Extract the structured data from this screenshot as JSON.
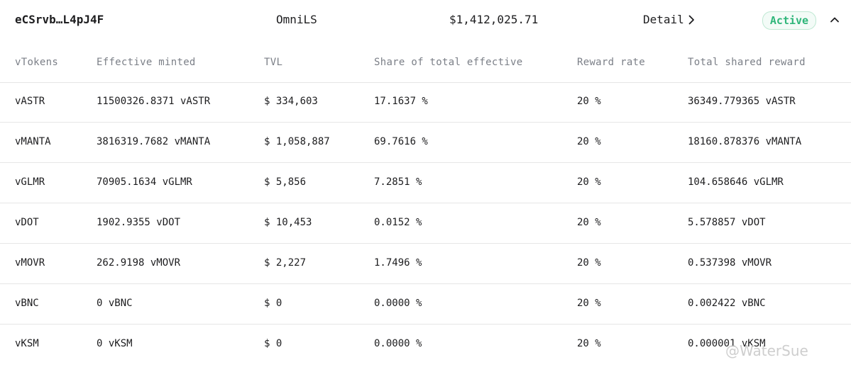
{
  "summary": {
    "address": "eCSrvb…L4pJ4F",
    "project": "OmniLS",
    "total_value": "$1,412,025.71",
    "detail_label": "Detail",
    "status": "Active",
    "status_color": "#2fb67a"
  },
  "columns": [
    "vTokens",
    "Effective minted",
    "TVL",
    "Share of total effective",
    "Reward rate",
    "Total shared reward"
  ],
  "rows": [
    {
      "token": "vASTR",
      "minted": "11500326.8371 vASTR",
      "tvl": "$ 334,603",
      "share": "17.1637 %",
      "rate": "20 %",
      "reward": "36349.779365 vASTR"
    },
    {
      "token": "vMANTA",
      "minted": "3816319.7682 vMANTA",
      "tvl": "$ 1,058,887",
      "share": "69.7616 %",
      "rate": "20 %",
      "reward": "18160.878376 vMANTA"
    },
    {
      "token": "vGLMR",
      "minted": "70905.1634 vGLMR",
      "tvl": "$ 5,856",
      "share": "7.2851 %",
      "rate": "20 %",
      "reward": "104.658646 vGLMR"
    },
    {
      "token": "vDOT",
      "minted": "1902.9355 vDOT",
      "tvl": "$ 10,453",
      "share": "0.0152 %",
      "rate": "20 %",
      "reward": "5.578857 vDOT"
    },
    {
      "token": "vMOVR",
      "minted": "262.9198 vMOVR",
      "tvl": "$ 2,227",
      "share": "1.7496 %",
      "rate": "20 %",
      "reward": "0.537398 vMOVR"
    },
    {
      "token": "vBNC",
      "minted": "0 vBNC",
      "tvl": "$ 0",
      "share": "0.0000 %",
      "rate": "20 %",
      "reward": "0.002422 vBNC"
    },
    {
      "token": "vKSM",
      "minted": "0 vKSM",
      "tvl": "$ 0",
      "share": "0.0000 %",
      "rate": "20 %",
      "reward": "0.000001 vKSM"
    }
  ],
  "watermark": "@WaterSue",
  "icons": {
    "detail": "chevron-right-icon",
    "collapse": "chevron-up-icon"
  }
}
